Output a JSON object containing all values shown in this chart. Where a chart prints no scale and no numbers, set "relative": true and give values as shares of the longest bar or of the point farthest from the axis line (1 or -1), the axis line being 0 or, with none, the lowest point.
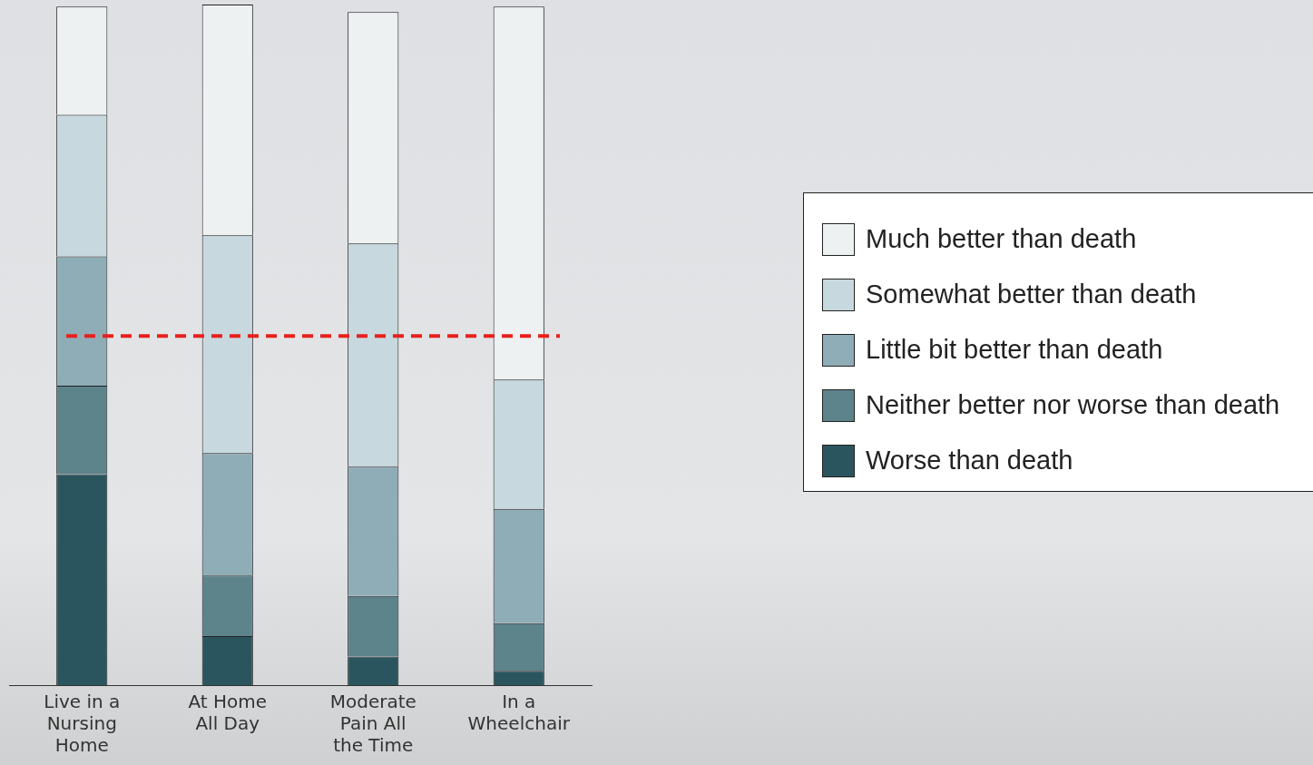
{
  "chart_data": {
    "type": "bar",
    "stacked": true,
    "relative": true,
    "legend": "right",
    "grid": false,
    "categories": [
      "Live in a Nursing Home",
      "At Home All Day",
      "Moderate Pain All the Time",
      "In a Wheelchair"
    ],
    "series": [
      {
        "name": "Worse than death",
        "color": "#2a555e",
        "values": [
          0.31,
          0.072,
          0.042,
          0.021
        ]
      },
      {
        "name": "Neither better nor worse than death",
        "color": "#5d838b",
        "values": [
          0.13,
          0.089,
          0.089,
          0.07
        ]
      },
      {
        "name": "Little bit better than death",
        "color": "#8fadb7",
        "values": [
          0.19,
          0.18,
          0.19,
          0.168
        ]
      },
      {
        "name": "Somewhat better than death",
        "color": "#c8d8df",
        "values": [
          0.208,
          0.32,
          0.328,
          0.19
        ]
      },
      {
        "name": "Much better than death",
        "color": "#edf1f2",
        "values": [
          0.159,
          0.339,
          0.34,
          0.548
        ]
      }
    ],
    "ref_lines": [
      {
        "axis": "y",
        "value": 0.513,
        "color": "#e8201c",
        "line_style": "dashed"
      }
    ]
  }
}
